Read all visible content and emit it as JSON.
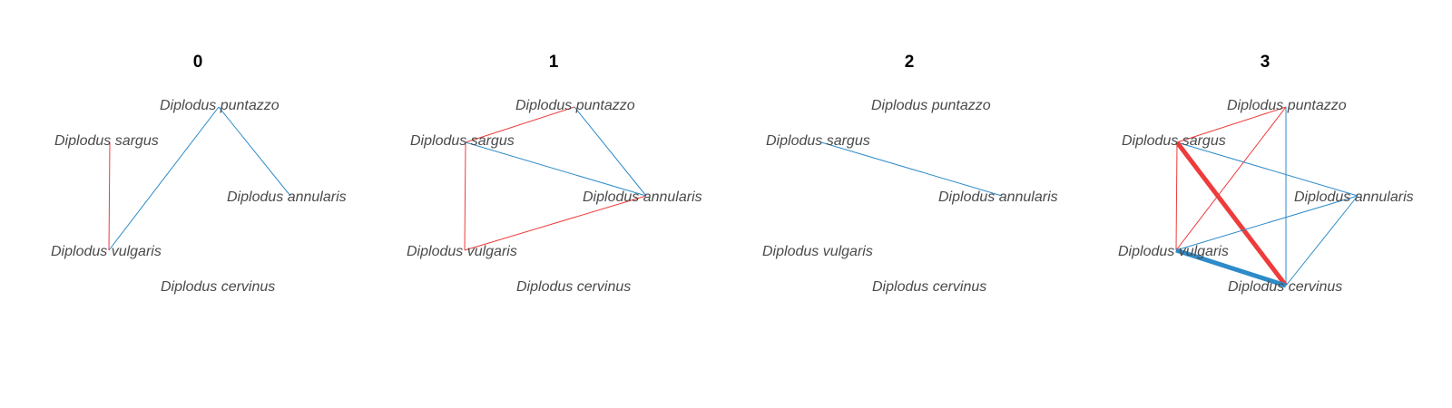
{
  "colors": {
    "positive": "#2E8BC9",
    "negative": "#EE3B3B",
    "label": "#4a4a4a",
    "title": "#000000"
  },
  "nodes": [
    {
      "id": "puntazzo",
      "label": "Diplodus puntazzo"
    },
    {
      "id": "sargus",
      "label": "Diplodus sargus"
    },
    {
      "id": "annularis",
      "label": "Diplodus annularis"
    },
    {
      "id": "vulgaris",
      "label": "Diplodus vulgaris"
    },
    {
      "id": "cervinus",
      "label": "Diplodus cervinus"
    }
  ],
  "panels": [
    {
      "title": "0",
      "edges": [
        {
          "from": "puntazzo",
          "to": "annularis",
          "sign": "positive",
          "weight": 1
        },
        {
          "from": "puntazzo",
          "to": "vulgaris",
          "sign": "positive",
          "weight": 1
        },
        {
          "from": "sargus",
          "to": "vulgaris",
          "sign": "negative",
          "weight": 1
        }
      ]
    },
    {
      "title": "1",
      "edges": [
        {
          "from": "puntazzo",
          "to": "sargus",
          "sign": "negative",
          "weight": 1
        },
        {
          "from": "puntazzo",
          "to": "annularis",
          "sign": "positive",
          "weight": 1
        },
        {
          "from": "sargus",
          "to": "annularis",
          "sign": "positive",
          "weight": 1
        },
        {
          "from": "sargus",
          "to": "vulgaris",
          "sign": "negative",
          "weight": 1
        },
        {
          "from": "vulgaris",
          "to": "annularis",
          "sign": "negative",
          "weight": 1
        }
      ]
    },
    {
      "title": "2",
      "edges": [
        {
          "from": "sargus",
          "to": "annularis",
          "sign": "positive",
          "weight": 1
        }
      ]
    },
    {
      "title": "3",
      "edges": [
        {
          "from": "puntazzo",
          "to": "sargus",
          "sign": "negative",
          "weight": 1
        },
        {
          "from": "puntazzo",
          "to": "vulgaris",
          "sign": "negative",
          "weight": 1
        },
        {
          "from": "puntazzo",
          "to": "cervinus",
          "sign": "positive",
          "weight": 1
        },
        {
          "from": "sargus",
          "to": "annularis",
          "sign": "positive",
          "weight": 1
        },
        {
          "from": "sargus",
          "to": "vulgaris",
          "sign": "negative",
          "weight": 1
        },
        {
          "from": "sargus",
          "to": "cervinus",
          "sign": "negative",
          "weight": 5
        },
        {
          "from": "vulgaris",
          "to": "annularis",
          "sign": "positive",
          "weight": 1
        },
        {
          "from": "vulgaris",
          "to": "cervinus",
          "sign": "positive",
          "weight": 5
        },
        {
          "from": "annularis",
          "to": "cervinus",
          "sign": "positive",
          "weight": 1
        }
      ]
    }
  ]
}
